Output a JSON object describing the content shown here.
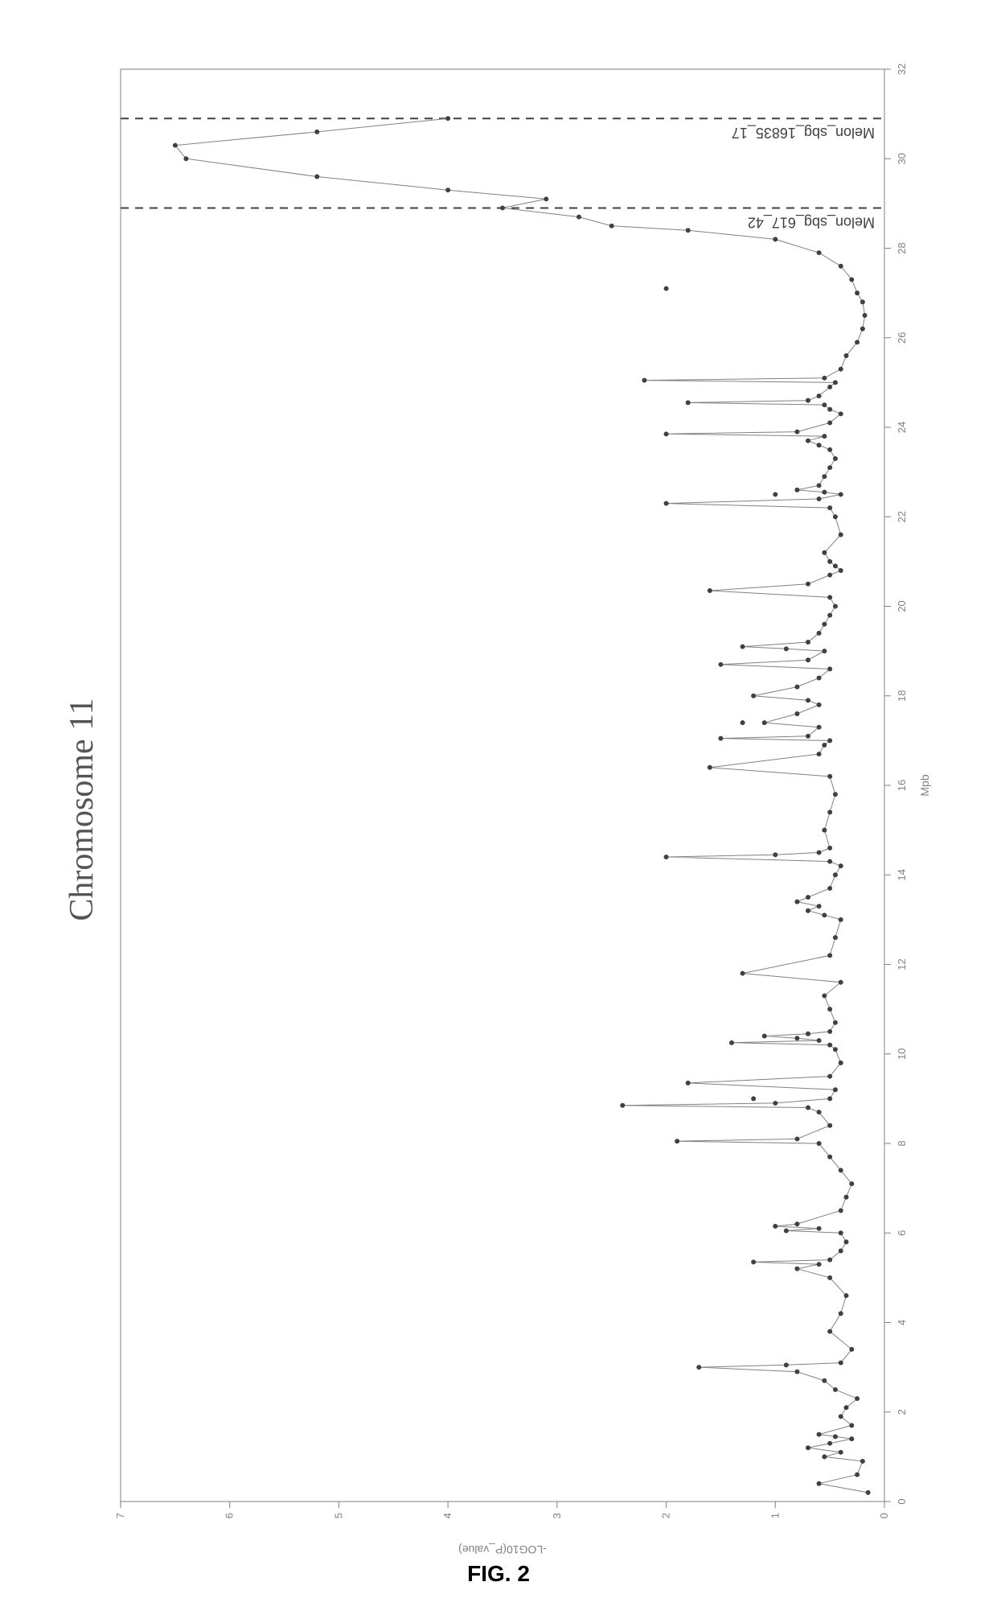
{
  "figure_caption": "FIG. 2",
  "chart": {
    "type": "line-scatter",
    "title": "Chromosome 11",
    "title_fontsize": 42,
    "title_color": "#555555",
    "xlabel": "Mpb",
    "ylabel": "-LOG10(P_value)",
    "label_fontsize": 14,
    "label_color": "#808080",
    "background_color": "#ffffff",
    "axis_color": "#808080",
    "tick_fontsize": 13,
    "tick_color": "#808080",
    "xlim": [
      0,
      32
    ],
    "ylim": [
      0,
      7
    ],
    "xtick_step": 2,
    "ytick_step": 1,
    "line_color": "#808080",
    "line_width": 1,
    "marker_color": "#404040",
    "marker_size": 3,
    "marker_style": "circle",
    "plot_area_border_color": "#808080",
    "plot_area_border_width": 1,
    "reference_lines": [
      {
        "x": 28.9,
        "label": "Melon_sbg_617_42",
        "style": "dashed",
        "color": "#404040",
        "fontsize": 18,
        "width": 2
      },
      {
        "x": 30.9,
        "label": "Melon_sbg_16835_17",
        "style": "dashed",
        "color": "#404040",
        "fontsize": 18,
        "width": 2
      }
    ],
    "data_x": [
      0.2,
      0.4,
      0.6,
      0.9,
      1.0,
      1.1,
      1.2,
      1.3,
      1.4,
      1.45,
      1.5,
      1.7,
      1.9,
      2.1,
      2.3,
      2.5,
      2.7,
      2.9,
      3.0,
      3.05,
      3.1,
      3.4,
      3.8,
      4.2,
      4.6,
      5.0,
      5.2,
      5.3,
      5.35,
      5.4,
      5.6,
      5.8,
      6.0,
      6.05,
      6.1,
      6.15,
      6.2,
      6.5,
      6.8,
      7.1,
      7.4,
      7.7,
      8.0,
      8.05,
      8.1,
      8.4,
      8.7,
      8.8,
      8.85,
      8.9,
      9.0,
      9.2,
      9.35,
      9.5,
      9.8,
      10.1,
      10.2,
      10.25,
      10.3,
      10.35,
      10.4,
      10.45,
      10.5,
      10.7,
      11.0,
      11.3,
      11.6,
      11.8,
      12.2,
      12.6,
      13.0,
      13.1,
      13.2,
      13.3,
      13.4,
      13.5,
      13.7,
      14.0,
      14.2,
      14.3,
      14.4,
      14.45,
      14.5,
      14.6,
      15.0,
      15.4,
      15.8,
      16.2,
      16.4,
      16.7,
      16.9,
      17.0,
      17.05,
      17.1,
      17.3,
      17.4,
      17.6,
      17.8,
      17.9,
      18.0,
      18.2,
      18.4,
      18.6,
      18.7,
      18.8,
      19.0,
      19.05,
      19.1,
      19.2,
      19.4,
      19.6,
      19.8,
      20.0,
      20.2,
      20.35,
      20.5,
      20.7,
      20.8,
      20.9,
      21.0,
      21.2,
      21.6,
      22.0,
      22.2,
      22.3,
      22.4,
      22.5,
      22.55,
      22.6,
      22.7,
      22.9,
      23.1,
      23.3,
      23.5,
      23.6,
      23.7,
      23.8,
      23.85,
      23.9,
      24.1,
      24.3,
      24.4,
      24.5,
      24.55,
      24.6,
      24.7,
      24.9,
      25.0,
      25.05,
      25.1,
      25.3,
      25.6,
      25.9,
      26.2,
      26.5,
      26.8,
      27.0,
      27.3,
      27.6,
      27.9,
      28.2,
      28.4,
      28.5,
      28.7,
      28.9,
      29.1,
      29.3,
      29.6,
      30.0,
      30.3,
      30.6,
      30.9
    ],
    "data_y": [
      0.15,
      0.6,
      0.25,
      0.2,
      0.55,
      0.4,
      0.7,
      0.5,
      0.3,
      0.45,
      0.6,
      0.3,
      0.4,
      0.35,
      0.25,
      0.45,
      0.55,
      0.8,
      1.7,
      0.9,
      0.4,
      0.3,
      0.5,
      0.4,
      0.35,
      0.5,
      0.8,
      0.6,
      1.2,
      0.5,
      0.4,
      0.35,
      0.4,
      0.9,
      0.6,
      1.0,
      0.8,
      0.4,
      0.35,
      0.3,
      0.4,
      0.5,
      0.6,
      1.9,
      0.8,
      0.5,
      0.6,
      0.7,
      2.4,
      1.0,
      0.5,
      0.45,
      1.8,
      0.5,
      0.4,
      0.45,
      0.5,
      1.4,
      0.6,
      0.8,
      1.1,
      0.7,
      0.5,
      0.45,
      0.5,
      0.55,
      0.4,
      1.3,
      0.5,
      0.45,
      0.4,
      0.55,
      0.7,
      0.6,
      0.8,
      0.7,
      0.5,
      0.45,
      0.4,
      0.5,
      2.0,
      1.0,
      0.6,
      0.5,
      0.55,
      0.5,
      0.45,
      0.5,
      1.6,
      0.6,
      0.55,
      0.5,
      1.5,
      0.7,
      0.6,
      1.1,
      0.8,
      0.6,
      0.7,
      1.2,
      0.8,
      0.6,
      0.5,
      1.5,
      0.7,
      0.55,
      0.9,
      1.3,
      0.7,
      0.6,
      0.55,
      0.5,
      0.45,
      0.5,
      1.6,
      0.7,
      0.5,
      0.4,
      0.45,
      0.5,
      0.55,
      0.4,
      0.45,
      0.5,
      2.0,
      0.6,
      0.4,
      0.55,
      0.8,
      0.6,
      0.55,
      0.5,
      0.45,
      0.5,
      0.6,
      0.7,
      0.55,
      2.0,
      0.8,
      0.5,
      0.4,
      0.5,
      0.55,
      1.8,
      0.7,
      0.6,
      0.5,
      0.45,
      2.2,
      0.55,
      0.4,
      0.35,
      0.25,
      0.2,
      0.18,
      0.2,
      0.25,
      0.3,
      0.4,
      0.6,
      1.0,
      1.8,
      2.5,
      2.8,
      3.5,
      3.1,
      4.0,
      5.2,
      6.4,
      6.5,
      5.2,
      4.0
    ],
    "extra_points": [
      {
        "x": 27.1,
        "y": 2.0
      },
      {
        "x": 22.5,
        "y": 1.0
      },
      {
        "x": 17.4,
        "y": 1.3
      },
      {
        "x": 9.0,
        "y": 1.2
      }
    ]
  }
}
